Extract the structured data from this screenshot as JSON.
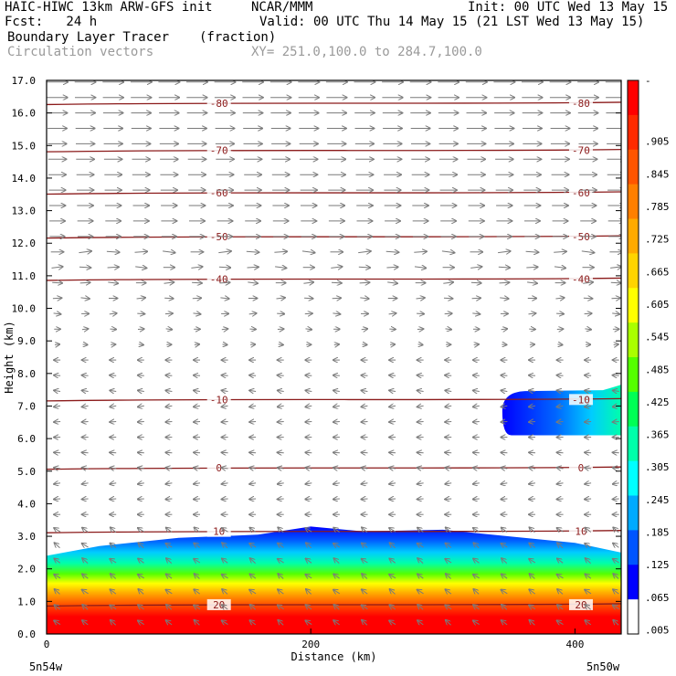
{
  "header": {
    "line1_left": "HAIC-HIWC 13km ARW-GFS init",
    "line1_center": "NCAR/MMM",
    "line1_right": "Init: 00 UTC Wed 13 May 15",
    "line2_left": "Fcst:   24 h",
    "line2_right": "Valid: 00 UTC Thu 14 May 15 (21 LST Wed 13 May 15)",
    "line3_left": "Boundary Layer Tracer",
    "line3_units": "(fraction)",
    "line4_left": "Circulation vectors",
    "line4_xy": "XY= 251.0,100.0 to 284.7,100.0"
  },
  "colors": {
    "isotherm": "#8b1a1a",
    "vector": "#7a7a7a",
    "frame": "#000000"
  },
  "chart_data": {
    "type": "heatmap",
    "title": "Boundary Layer Tracer",
    "units": "(fraction)",
    "xlabel": "Distance (km)",
    "ylabel": "Height (km)",
    "xlim": [
      0,
      435
    ],
    "ylim": [
      0,
      17
    ],
    "x_ticks": [
      "0",
      "200",
      "400"
    ],
    "x_tick_values": [
      0,
      200,
      400
    ],
    "y_ticks": [
      "0.0",
      "1.0",
      "2.0",
      "3.0",
      "4.0",
      "5.0",
      "6.0",
      "7.0",
      "8.0",
      "9.0",
      "10.0",
      "11.0",
      "12.0",
      "13.0",
      "14.0",
      "15.0",
      "16.0",
      "17.0"
    ],
    "y_tick_values": [
      0,
      1,
      2,
      3,
      4,
      5,
      6,
      7,
      8,
      9,
      10,
      11,
      12,
      13,
      14,
      15,
      16,
      17
    ],
    "x_endpoint_left": "5n54w",
    "x_endpoint_right": "5n50w",
    "colorbar": {
      "labels": [
        "-",
        ".905",
        ".845",
        ".785",
        ".725",
        ".665",
        ".605",
        ".545",
        ".485",
        ".425",
        ".365",
        ".305",
        ".245",
        ".185",
        ".125",
        ".065",
        ".005"
      ],
      "colors": [
        "#ff0000",
        "#ff2a00",
        "#ff5500",
        "#ff7f00",
        "#ffaa00",
        "#ffd400",
        "#ffff00",
        "#aaff00",
        "#55ff00",
        "#00ff55",
        "#00ffaa",
        "#00ffff",
        "#00aaff",
        "#0055ff",
        "#0000ff",
        "#ffffff"
      ]
    },
    "isotherms": [
      {
        "label": "-80",
        "height_km": 16.3
      },
      {
        "label": "-70",
        "height_km": 14.85
      },
      {
        "label": "-60",
        "height_km": 13.55
      },
      {
        "label": "-50",
        "height_km": 12.2
      },
      {
        "label": "-40",
        "height_km": 10.9
      },
      {
        "label": "-10",
        "height_km": 7.2
      },
      {
        "label": "0",
        "height_km": 5.1
      },
      {
        "label": "10",
        "height_km": 3.15
      },
      {
        "label": "20",
        "height_km": 0.9
      }
    ],
    "tracer_top_km": [
      [
        0,
        2.4
      ],
      [
        40,
        2.7
      ],
      [
        100,
        2.95
      ],
      [
        160,
        3.05
      ],
      [
        200,
        3.3
      ],
      [
        240,
        3.15
      ],
      [
        300,
        3.2
      ],
      [
        350,
        3.0
      ],
      [
        400,
        2.8
      ],
      [
        435,
        2.5
      ]
    ],
    "upper_tracer_patch": {
      "x_start": 345,
      "x_end": 435,
      "bottom_km": 6.1,
      "top_km": 7.6
    }
  }
}
